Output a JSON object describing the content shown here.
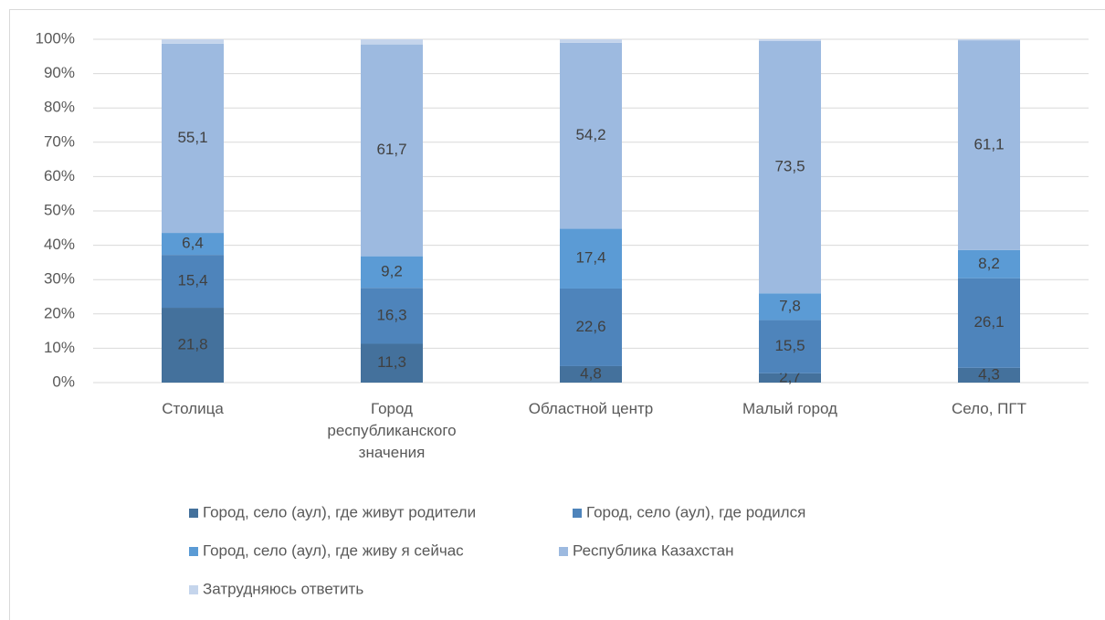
{
  "chart_data": {
    "type": "stacked_bar",
    "categories": [
      "Столица",
      "Город республиканского значения",
      "Областной центр",
      "Малый город",
      "Село, ПГТ"
    ],
    "series": [
      {
        "name": "Город, село (аул), где живут родители",
        "color": "#44719c",
        "values": [
          21.8,
          11.3,
          4.8,
          2.7,
          4.3
        ],
        "value_labels": [
          "21,8",
          "11,3",
          "4,8",
          "2,7",
          "4,3"
        ]
      },
      {
        "name": "Город, село (аул), где родился",
        "color": "#4e84bb",
        "values": [
          15.4,
          16.3,
          22.6,
          15.5,
          26.1
        ],
        "value_labels": [
          "15,4",
          "16,3",
          "22,6",
          "15,5",
          "26,1"
        ]
      },
      {
        "name": "Город, село (аул), где живу я сейчас",
        "color": "#5b9bd5",
        "values": [
          6.4,
          9.2,
          17.4,
          7.8,
          8.2
        ],
        "value_labels": [
          "6,4",
          "9,2",
          "17,4",
          "7,8",
          "8,2"
        ]
      },
      {
        "name": "Республика Казахстан",
        "color": "#9dbae0",
        "values": [
          55.1,
          61.7,
          54.2,
          73.5,
          61.1
        ],
        "value_labels": [
          "55,1",
          "61,7",
          "54,2",
          "73,5",
          "61,1"
        ]
      },
      {
        "name": "Затрудняюсь ответить",
        "color": "#c5d5ec",
        "values": [
          1.3,
          1.5,
          1.0,
          0.5,
          0.3
        ]
      }
    ],
    "ylim": [
      0,
      100
    ],
    "yticks": [
      {
        "value": 0,
        "label": "0%"
      },
      {
        "value": 10,
        "label": "10%"
      },
      {
        "value": 20,
        "label": "20%"
      },
      {
        "value": 30,
        "label": "30%"
      },
      {
        "value": 40,
        "label": "40%"
      },
      {
        "value": 50,
        "label": "50%"
      },
      {
        "value": 60,
        "label": "60%"
      },
      {
        "value": 70,
        "label": "70%"
      },
      {
        "value": 80,
        "label": "80%"
      },
      {
        "value": 90,
        "label": "90%"
      },
      {
        "value": 100,
        "label": "100%"
      }
    ],
    "grid": true,
    "legend": "bottom"
  }
}
